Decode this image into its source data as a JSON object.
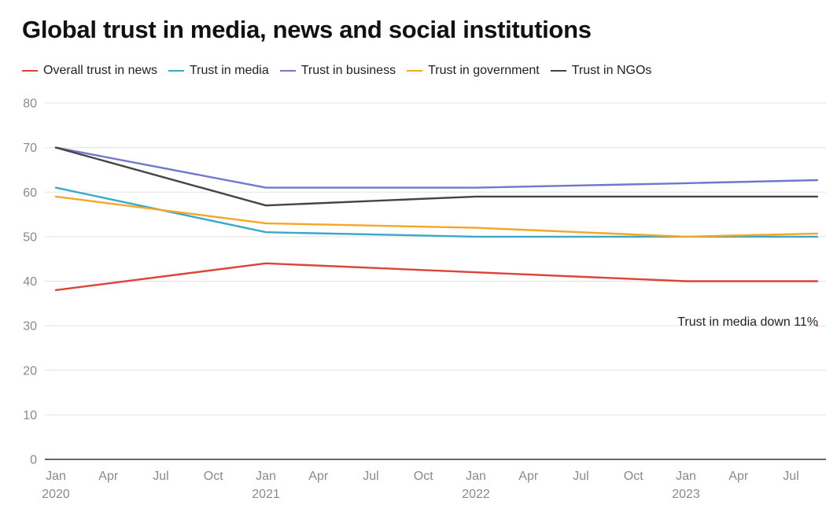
{
  "chart_data": {
    "type": "line",
    "title": "Global trust in media, news and social institutions",
    "xlabel": "",
    "ylabel": "",
    "ylim": [
      0,
      80
    ],
    "y_ticks": [
      "0",
      "10",
      "20",
      "30",
      "40",
      "50",
      "60",
      "70",
      "80"
    ],
    "x_tick_labels": [
      {
        "month": "Jan",
        "year": "2020"
      },
      {
        "month": "Apr",
        "year": ""
      },
      {
        "month": "Jul",
        "year": ""
      },
      {
        "month": "Oct",
        "year": ""
      },
      {
        "month": "Jan",
        "year": "2021"
      },
      {
        "month": "Apr",
        "year": ""
      },
      {
        "month": "Jul",
        "year": ""
      },
      {
        "month": "Oct",
        "year": ""
      },
      {
        "month": "Jan",
        "year": "2022"
      },
      {
        "month": "Apr",
        "year": ""
      },
      {
        "month": "Jul",
        "year": ""
      },
      {
        "month": "Oct",
        "year": ""
      },
      {
        "month": "Jan",
        "year": "2023"
      },
      {
        "month": "Apr",
        "year": ""
      },
      {
        "month": "Jul",
        "year": ""
      }
    ],
    "x_unit": "months since Jan 2020",
    "x_range": [
      0,
      43.5
    ],
    "grid": true,
    "legend_position": "top-left",
    "series": [
      {
        "name": "Overall trust in news",
        "color": "#db4437",
        "x": [
          0,
          12,
          24,
          36,
          43.5
        ],
        "values": [
          38,
          44,
          42,
          40,
          40
        ]
      },
      {
        "name": "Trust in media",
        "color": "#3aa8c9",
        "x": [
          0,
          12,
          24,
          36,
          43.5
        ],
        "values": [
          61,
          51,
          50,
          50,
          50
        ]
      },
      {
        "name": "Trust in business",
        "color": "#7077cf",
        "x": [
          0,
          12,
          24,
          36,
          43.5
        ],
        "values": [
          70,
          61,
          61,
          62,
          62.7
        ]
      },
      {
        "name": "Trust in government",
        "color": "#f5a623",
        "x": [
          0,
          12,
          24,
          36,
          43.5
        ],
        "values": [
          59,
          53,
          52,
          50,
          50.7
        ]
      },
      {
        "name": "Trust in NGOs",
        "color": "#444444",
        "x": [
          0,
          12,
          24,
          36,
          43.5
        ],
        "values": [
          70,
          57,
          59,
          59,
          59
        ]
      }
    ],
    "annotations": [
      {
        "text": "Trust in media down 11%",
        "x": 43.5,
        "y": 31,
        "color": "#db4437"
      }
    ]
  }
}
